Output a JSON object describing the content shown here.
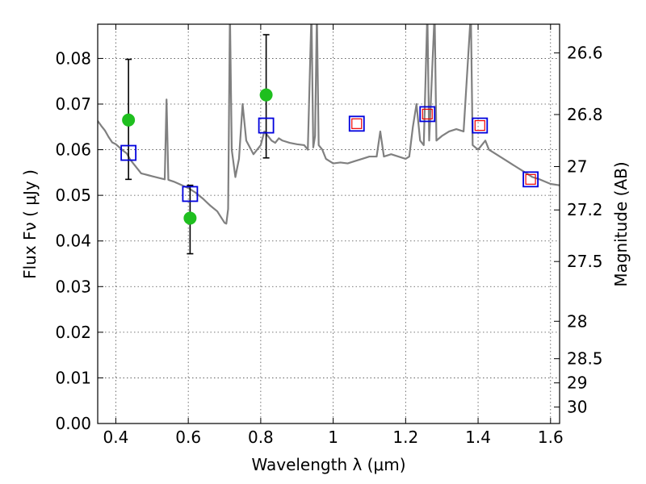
{
  "chart_data": {
    "type": "line",
    "title": "",
    "xlabel": "Wavelength  λ (μm)",
    "ylabel": "Flux  Fν  ( μJy )",
    "y2label": "Magnitude (AB)",
    "xlim": [
      0.35,
      1.625
    ],
    "ylim": [
      0.0,
      0.0875
    ],
    "xticks": [
      0.4,
      0.6,
      0.8,
      1.0,
      1.2,
      1.4,
      1.6
    ],
    "xtick_labels": [
      "0.4",
      "0.6",
      "0.8",
      "1",
      "1.2",
      "1.4",
      "1.6"
    ],
    "yticks": [
      0.0,
      0.01,
      0.02,
      0.03,
      0.04,
      0.05,
      0.06,
      0.07,
      0.08
    ],
    "ytick_labels": [
      "0.00",
      "0.01",
      "0.02",
      "0.03",
      "0.04",
      "0.05",
      "0.06",
      "0.07",
      "0.08"
    ],
    "y2ticks": [
      {
        "label": "26.6",
        "flux": 0.0812
      },
      {
        "label": "26.8",
        "flux": 0.0677
      },
      {
        "label": "27",
        "flux": 0.0563
      },
      {
        "label": "27.2",
        "flux": 0.0468
      },
      {
        "label": "27.5",
        "flux": 0.0355
      },
      {
        "label": "28",
        "flux": 0.0224
      },
      {
        "label": "28.5",
        "flux": 0.0142
      },
      {
        "label": "29",
        "flux": 0.0089
      },
      {
        "label": "30",
        "flux": 0.0036
      }
    ],
    "grid": true,
    "colors": {
      "model": "#808080",
      "observed": "#1fbf1f",
      "model_box": "#0000dd",
      "model_box_inner": "#ee0000",
      "errorbar": "#000000"
    },
    "model_spectrum": [
      [
        0.35,
        0.0663
      ],
      [
        0.36,
        0.0652
      ],
      [
        0.37,
        0.0642
      ],
      [
        0.38,
        0.0628
      ],
      [
        0.39,
        0.0616
      ],
      [
        0.4,
        0.0612
      ],
      [
        0.41,
        0.0605
      ],
      [
        0.42,
        0.0598
      ],
      [
        0.43,
        0.0592
      ],
      [
        0.44,
        0.0578
      ],
      [
        0.45,
        0.0568
      ],
      [
        0.46,
        0.0558
      ],
      [
        0.47,
        0.0548
      ],
      [
        0.48,
        0.0546
      ],
      [
        0.49,
        0.0544
      ],
      [
        0.5,
        0.0542
      ],
      [
        0.52,
        0.0538
      ],
      [
        0.535,
        0.0535
      ],
      [
        0.54,
        0.071
      ],
      [
        0.545,
        0.0534
      ],
      [
        0.56,
        0.053
      ],
      [
        0.58,
        0.0523
      ],
      [
        0.6,
        0.0516
      ],
      [
        0.62,
        0.0506
      ],
      [
        0.64,
        0.0493
      ],
      [
        0.66,
        0.0478
      ],
      [
        0.68,
        0.0465
      ],
      [
        0.7,
        0.044
      ],
      [
        0.705,
        0.0438
      ],
      [
        0.71,
        0.047
      ],
      [
        0.715,
        0.09
      ],
      [
        0.72,
        0.06
      ],
      [
        0.73,
        0.054
      ],
      [
        0.74,
        0.058
      ],
      [
        0.75,
        0.07
      ],
      [
        0.76,
        0.062
      ],
      [
        0.78,
        0.059
      ],
      [
        0.8,
        0.061
      ],
      [
        0.81,
        0.064
      ],
      [
        0.83,
        0.062
      ],
      [
        0.84,
        0.0615
      ],
      [
        0.85,
        0.0625
      ],
      [
        0.86,
        0.062
      ],
      [
        0.88,
        0.0615
      ],
      [
        0.9,
        0.0612
      ],
      [
        0.92,
        0.061
      ],
      [
        0.93,
        0.06
      ],
      [
        0.94,
        0.09
      ],
      [
        0.945,
        0.0605
      ],
      [
        0.95,
        0.063
      ],
      [
        0.955,
        0.09
      ],
      [
        0.96,
        0.061
      ],
      [
        0.97,
        0.06
      ],
      [
        0.98,
        0.058
      ],
      [
        1.0,
        0.057
      ],
      [
        1.02,
        0.0572
      ],
      [
        1.04,
        0.057
      ],
      [
        1.06,
        0.0575
      ],
      [
        1.08,
        0.058
      ],
      [
        1.1,
        0.0585
      ],
      [
        1.12,
        0.0585
      ],
      [
        1.13,
        0.064
      ],
      [
        1.14,
        0.0585
      ],
      [
        1.16,
        0.059
      ],
      [
        1.18,
        0.0585
      ],
      [
        1.2,
        0.058
      ],
      [
        1.21,
        0.0585
      ],
      [
        1.22,
        0.065
      ],
      [
        1.23,
        0.07
      ],
      [
        1.24,
        0.062
      ],
      [
        1.25,
        0.061
      ],
      [
        1.26,
        0.09
      ],
      [
        1.265,
        0.062
      ],
      [
        1.28,
        0.09
      ],
      [
        1.285,
        0.062
      ],
      [
        1.3,
        0.063
      ],
      [
        1.32,
        0.064
      ],
      [
        1.34,
        0.0645
      ],
      [
        1.36,
        0.064
      ],
      [
        1.38,
        0.09
      ],
      [
        1.385,
        0.061
      ],
      [
        1.4,
        0.06
      ],
      [
        1.42,
        0.062
      ],
      [
        1.43,
        0.06
      ],
      [
        1.45,
        0.059
      ],
      [
        1.48,
        0.0575
      ],
      [
        1.5,
        0.0565
      ],
      [
        1.53,
        0.055
      ],
      [
        1.55,
        0.054
      ],
      [
        1.57,
        0.0535
      ],
      [
        1.6,
        0.0525
      ],
      [
        1.625,
        0.0522
      ]
    ],
    "observed_points": [
      {
        "x": 0.435,
        "y": 0.0665,
        "yerr_low": 0.0535,
        "yerr_high": 0.0798
      },
      {
        "x": 0.605,
        "y": 0.045,
        "yerr_low": 0.0372,
        "yerr_high": 0.0522
      },
      {
        "x": 0.815,
        "y": 0.072,
        "yerr_low": 0.0582,
        "yerr_high": 0.0852
      }
    ],
    "model_photometry": [
      {
        "x": 0.435,
        "y": 0.0593,
        "inner": false
      },
      {
        "x": 0.605,
        "y": 0.0503,
        "inner": false
      },
      {
        "x": 0.815,
        "y": 0.0653,
        "inner": false
      },
      {
        "x": 1.065,
        "y": 0.0657,
        "inner": true
      },
      {
        "x": 1.26,
        "y": 0.0678,
        "inner": true
      },
      {
        "x": 1.405,
        "y": 0.0653,
        "inner": true
      },
      {
        "x": 1.545,
        "y": 0.0535,
        "inner": true
      }
    ]
  }
}
